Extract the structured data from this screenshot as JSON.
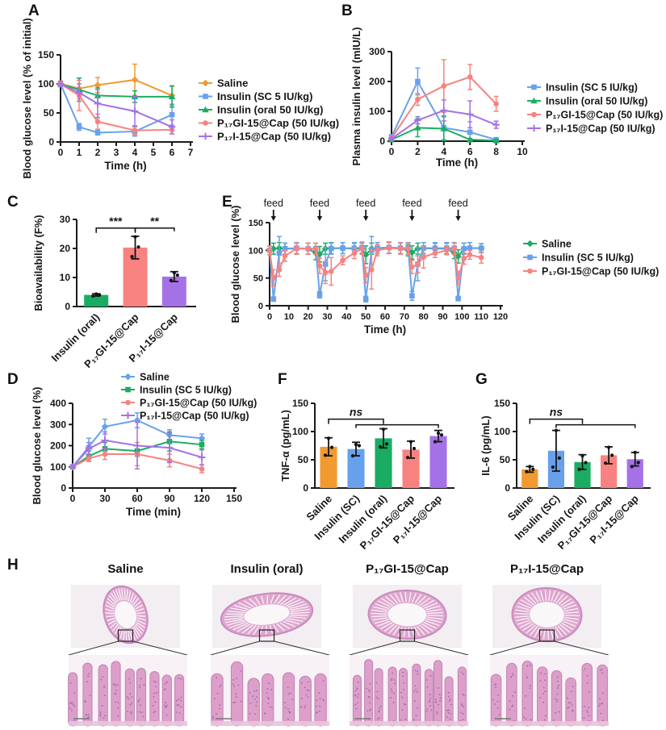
{
  "panels": {
    "A": "A",
    "B": "B",
    "C": "C",
    "D": "D",
    "E": "E",
    "F": "F",
    "G": "G",
    "H": "H"
  },
  "palette": {
    "orange": "#F09A30",
    "blue": "#68A1EB",
    "green": "#1BAC63",
    "red": "#F8827F",
    "purple": "#A571E6",
    "axis": "#1b1b1b",
    "error_black": "#161616"
  },
  "chart_data": [
    {
      "panel": "A",
      "type": "line",
      "xlabel": "Time (h)",
      "ylabel": "Blood glucose level (% of initial)",
      "xlim": [
        0,
        7
      ],
      "xticks": [
        0,
        1,
        2,
        3,
        4,
        5,
        6,
        7
      ],
      "ylim": [
        0,
        150
      ],
      "yticks": [
        0,
        50,
        100,
        150
      ],
      "x": [
        0,
        1,
        2,
        4,
        6
      ],
      "series": [
        {
          "name": "Saline",
          "color": "#F09A30",
          "marker": "diamond",
          "values": [
            100,
            92,
            98,
            107,
            80
          ],
          "err": [
            5,
            18,
            13,
            27,
            17
          ]
        },
        {
          "name": "Insulin (SC 5 IU/kg)",
          "color": "#68A1EB",
          "marker": "square",
          "values": [
            100,
            26,
            16,
            18,
            47
          ],
          "err": [
            3,
            6,
            4,
            8,
            18
          ]
        },
        {
          "name": "Insulin (oral 50 IU/kg)",
          "color": "#1BAC63",
          "marker": "triangle",
          "values": [
            100,
            90,
            80,
            78,
            78
          ],
          "err": [
            4,
            20,
            13,
            10,
            18
          ]
        },
        {
          "name": "P₁₇GI-15@Cap (50 IU/kg)",
          "color": "#F8827F",
          "marker": "circle",
          "values": [
            100,
            80,
            35,
            20,
            21
          ],
          "err": [
            4,
            26,
            13,
            8,
            7
          ]
        },
        {
          "name": "P₁₇I-15@Cap (50 IU/kg)",
          "color": "#A571E6",
          "marker": "plus",
          "values": [
            100,
            85,
            66,
            53,
            26
          ],
          "err": [
            4,
            15,
            24,
            25,
            12
          ]
        }
      ]
    },
    {
      "panel": "B",
      "type": "line",
      "xlabel": "Time (h)",
      "ylabel": "Plasma insulin level (mIU/L)",
      "xlim": [
        0,
        10
      ],
      "xticks": [
        0,
        2,
        4,
        6,
        8,
        10
      ],
      "ylim": [
        0,
        300
      ],
      "yticks": [
        0,
        100,
        200,
        300
      ],
      "x": [
        0,
        2,
        4,
        6,
        8
      ],
      "series": [
        {
          "name": "Insulin (SC 5 IU/kg)",
          "color": "#68A1EB",
          "marker": "square",
          "values": [
            15,
            200,
            45,
            30,
            5
          ],
          "err": [
            5,
            45,
            40,
            35,
            4
          ]
        },
        {
          "name": "Insulin (oral 50 IU/kg)",
          "color": "#1BAC63",
          "marker": "triangle",
          "values": [
            5,
            45,
            42,
            5,
            2
          ],
          "err": [
            3,
            30,
            40,
            4,
            2
          ]
        },
        {
          "name": "P₁₇GI-15@Cap (50 IU/kg)",
          "color": "#F8827F",
          "marker": "circle",
          "values": [
            10,
            140,
            185,
            215,
            125
          ],
          "err": [
            5,
            20,
            88,
            42,
            25
          ]
        },
        {
          "name": "P₁₇I-15@Cap (50 IU/kg)",
          "color": "#A571E6",
          "marker": "plus",
          "values": [
            8,
            70,
            103,
            90,
            55
          ],
          "err": [
            4,
            12,
            35,
            45,
            12
          ]
        }
      ]
    },
    {
      "panel": "C",
      "type": "bar",
      "ylabel": "Bioavailability (F%)",
      "ylim": [
        0,
        30
      ],
      "yticks": [
        0,
        10,
        20,
        30
      ],
      "categories": [
        "Insulin (oral)",
        "P₁₇GI-15@Cap",
        "P₁₇I-15@Cap"
      ],
      "values": [
        4,
        20.3,
        10.3
      ],
      "errors": [
        0.4,
        3.9,
        1.7
      ],
      "colors": [
        "#1BAC63",
        "#F8827F",
        "#A571E6"
      ],
      "points": [
        [
          3.6,
          4.0,
          4.3
        ],
        [
          17.2,
          20.5,
          24
        ],
        [
          9,
          10.8,
          11.6
        ]
      ],
      "significance": [
        {
          "from": 0,
          "to": 1,
          "label": "***",
          "y": 27
        },
        {
          "from": 1,
          "to": 2,
          "label": "**",
          "y": 27
        }
      ]
    },
    {
      "panel": "D",
      "type": "line",
      "xlabel": "Time (min)",
      "ylabel": "Blood glucose level (%)",
      "xlim": [
        0,
        150
      ],
      "xticks": [
        0,
        30,
        60,
        90,
        120,
        150
      ],
      "ylim": [
        0,
        400
      ],
      "yticks": [
        0,
        100,
        200,
        300,
        400
      ],
      "x": [
        0,
        15,
        30,
        60,
        90,
        120
      ],
      "series": [
        {
          "name": "Saline",
          "color": "#68A1EB",
          "marker": "diamond",
          "values": [
            100,
            195,
            290,
            320,
            250,
            235
          ],
          "err": [
            5,
            40,
            35,
            35,
            25,
            20
          ]
        },
        {
          "name": "Insulin (SC 5 IU/kg)",
          "color": "#1BAC63",
          "marker": "square",
          "values": [
            100,
            150,
            185,
            175,
            220,
            205
          ],
          "err": [
            5,
            25,
            30,
            25,
            45,
            20
          ]
        },
        {
          "name": "P₁₇GI-15@Cap (50 IU/kg)",
          "color": "#F8827F",
          "marker": "circle",
          "values": [
            100,
            140,
            160,
            160,
            130,
            90
          ],
          "err": [
            5,
            15,
            25,
            55,
            30,
            18
          ]
        },
        {
          "name": "P₁₇I-15@Cap (50 IU/kg)",
          "color": "#A571E6",
          "marker": "plus",
          "values": [
            100,
            185,
            225,
            200,
            190,
            145
          ],
          "err": [
            5,
            30,
            40,
            110,
            70,
            35
          ]
        }
      ]
    },
    {
      "panel": "E",
      "type": "line",
      "xlabel": "Time (h)",
      "ylabel": "Blood glucose level (%)",
      "xlim": [
        0,
        120
      ],
      "xticks": [
        0,
        10,
        20,
        30,
        40,
        50,
        60,
        70,
        80,
        90,
        100,
        110,
        120
      ],
      "ylim": [
        0,
        150
      ],
      "yticks": [
        0,
        50,
        100,
        150
      ],
      "feed_label": "feed",
      "feed_x": [
        2,
        26,
        50,
        74,
        98
      ],
      "x": [
        0,
        2,
        5,
        8,
        14,
        20,
        24,
        26,
        29,
        32,
        38,
        44,
        48,
        50,
        53,
        56,
        62,
        68,
        72,
        74,
        77,
        80,
        86,
        92,
        96,
        98,
        101,
        104,
        110
      ],
      "series": [
        {
          "name": "Saline",
          "color": "#1BAC63",
          "marker": "diamond",
          "values": [
            100,
            103,
            104,
            103,
            103,
            103,
            95,
            93,
            103,
            104,
            104,
            103,
            103,
            92,
            103,
            104,
            105,
            104,
            100,
            96,
            103,
            104,
            103,
            103,
            95,
            89,
            103,
            104,
            104
          ],
          "err": [
            8,
            10,
            10,
            10,
            10,
            10,
            12,
            14,
            10,
            10,
            10,
            10,
            10,
            16,
            10,
            10,
            10,
            10,
            10,
            12,
            10,
            10,
            10,
            10,
            10,
            12,
            10,
            10,
            8
          ]
        },
        {
          "name": "Insulin (SC 5 IU/kg)",
          "color": "#68A1EB",
          "marker": "square",
          "values": [
            100,
            12,
            95,
            103,
            104,
            103,
            103,
            20,
            75,
            103,
            104,
            104,
            105,
            12,
            100,
            104,
            105,
            104,
            104,
            18,
            75,
            104,
            104,
            104,
            104,
            13,
            103,
            104,
            104
          ],
          "err": [
            8,
            4,
            30,
            10,
            10,
            10,
            10,
            6,
            30,
            10,
            10,
            10,
            10,
            5,
            25,
            10,
            10,
            10,
            10,
            8,
            30,
            10,
            10,
            10,
            10,
            4,
            10,
            10,
            8
          ]
        },
        {
          "name": "P₁₇GI-15@Cap (50 IU/kg)",
          "color": "#F8827F",
          "marker": "circle",
          "values": [
            100,
            50,
            65,
            90,
            103,
            103,
            103,
            72,
            60,
            62,
            82,
            95,
            103,
            55,
            65,
            100,
            104,
            103,
            103,
            70,
            75,
            88,
            95,
            100,
            103,
            50,
            85,
            92,
            87
          ],
          "err": [
            8,
            15,
            12,
            10,
            10,
            10,
            10,
            14,
            20,
            25,
            8,
            10,
            10,
            14,
            35,
            10,
            10,
            10,
            10,
            12,
            15,
            20,
            8,
            8,
            10,
            12,
            10,
            8,
            10
          ]
        }
      ]
    },
    {
      "panel": "F",
      "type": "bar",
      "ylabel": "TNF-α (pg/mL)",
      "ylim": [
        0,
        150
      ],
      "yticks": [
        0,
        50,
        100,
        150
      ],
      "categories": [
        "Saline",
        "Insulin (SC)",
        "Insulin (oral)",
        "P₁₇GI-15@Cap",
        "P₁₇I-15@Cap"
      ],
      "values": [
        73,
        69,
        88,
        68,
        92
      ],
      "errors": [
        16,
        12,
        17,
        15,
        10
      ],
      "colors": [
        "#F09A30",
        "#68A1EB",
        "#1BAC63",
        "#F8827F",
        "#A571E6"
      ],
      "points": [
        [
          58,
          72,
          88
        ],
        [
          57,
          75,
          77
        ],
        [
          73,
          78,
          104
        ],
        [
          54,
          70,
          82
        ],
        [
          82,
          94,
          97
        ]
      ],
      "significance": [
        {
          "from": 0,
          "to": 2,
          "label": "ns",
          "y": 122
        },
        {
          "from": 1,
          "to": 4,
          "label": "",
          "y": 112
        }
      ]
    },
    {
      "panel": "G",
      "type": "bar",
      "ylabel": "IL-6 (pg/mL)",
      "ylim": [
        0,
        150
      ],
      "yticks": [
        0,
        50,
        100,
        150
      ],
      "categories": [
        "Saline",
        "Insulin (SC)",
        "Insulin (oral)",
        "P₁₇GI-15@Cap",
        "P₁₇I-15@Cap"
      ],
      "values": [
        33,
        66,
        46,
        58,
        51
      ],
      "errors": [
        5,
        36,
        13,
        15,
        12
      ],
      "colors": [
        "#F09A30",
        "#68A1EB",
        "#1BAC63",
        "#F8827F",
        "#A571E6"
      ],
      "points": [
        [
          29,
          33,
          38
        ],
        [
          37,
          53,
          102
        ],
        [
          33,
          45,
          57
        ],
        [
          44,
          58,
          72
        ],
        [
          38,
          45,
          63
        ]
      ],
      "significance": [
        {
          "from": 0,
          "to": 2,
          "label": "ns",
          "y": 122
        },
        {
          "from": 1,
          "to": 4,
          "label": "",
          "y": 112
        }
      ]
    }
  ],
  "histology": {
    "columns": [
      {
        "label": "Saline"
      },
      {
        "label": "Insulin (oral)"
      },
      {
        "label": "P₁₇GI-15@Cap"
      },
      {
        "label": "P₁₇I-15@Cap"
      }
    ],
    "colors": {
      "box_bg": "#f2eef2",
      "tissue": "#dfa7d0",
      "tissue_edge": "#c98abc",
      "villi_gap": "#f6f0f5",
      "villi_line": "#d194c4",
      "lumen": "#faf7f9",
      "zoom_bg": "#f8f1f6",
      "villus": "#dd9fc9",
      "villus_edge": "#bd84b2",
      "nuclei": "#8d5fae",
      "base_band": "#eac3db"
    }
  }
}
